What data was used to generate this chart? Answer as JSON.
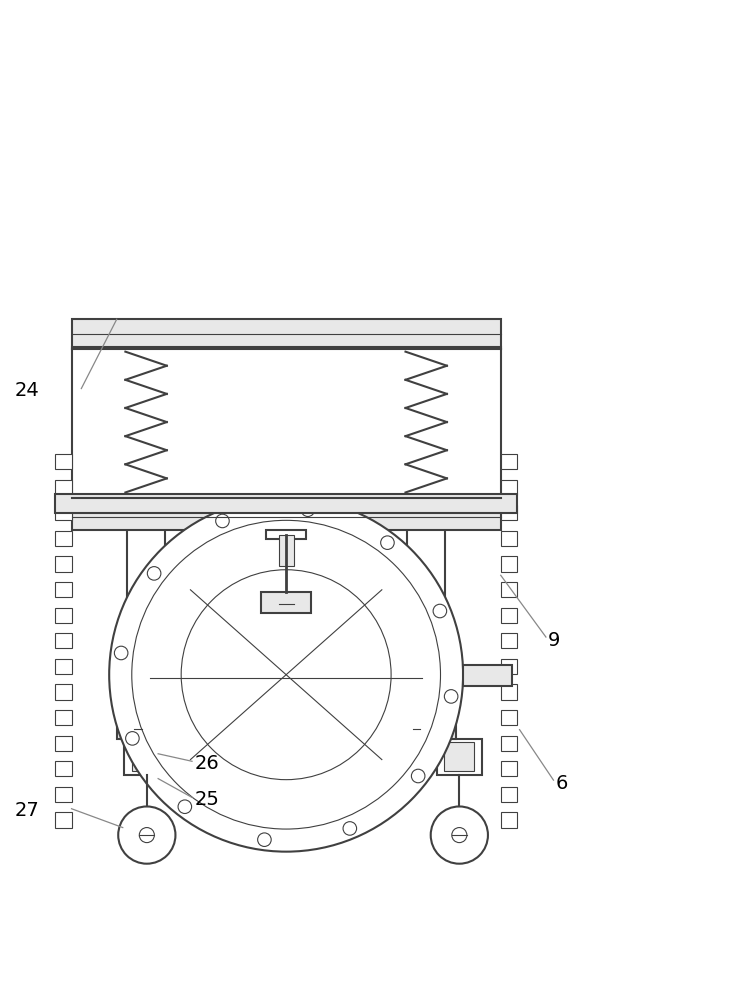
{
  "bg_color": "#ffffff",
  "line_color": "#404040",
  "light_line_color": "#888888",
  "fill_color": "#e8e8e8",
  "label_color": "#000000",
  "label_fontsize": 14,
  "lw_main": 1.5,
  "lw_thin": 0.8
}
